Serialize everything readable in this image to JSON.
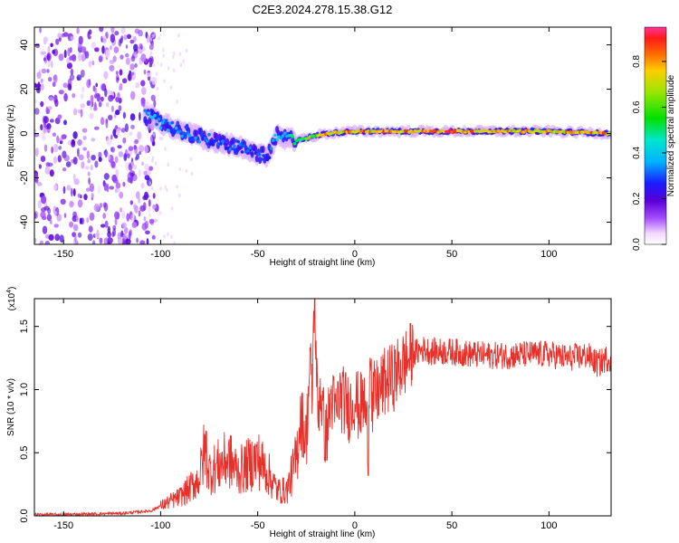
{
  "title": "C2E3.2024.278.15.38.G12",
  "chart_data": [
    {
      "type": "heatmap",
      "xlabel": "Height of straight line (km)",
      "ylabel": "Frequency (Hz)",
      "xlim": [
        -165,
        132
      ],
      "ylim": [
        -50,
        48
      ],
      "xticks": [
        -150,
        -100,
        -50,
        0,
        50,
        100
      ],
      "yticks": [
        -40,
        -20,
        0,
        20,
        40
      ],
      "colorbar": {
        "label": "Normalized spectral amplitude",
        "range": [
          0.0,
          0.95
        ],
        "ticks": [
          0.0,
          0.2,
          0.4,
          0.6,
          0.8
        ],
        "tick_labels": [
          "0.0",
          "0.2",
          "0.4",
          "0.6",
          "0.8"
        ]
      },
      "features": {
        "noise_region_x": [
          -165,
          -108
        ],
        "ridge": [
          {
            "x": -108,
            "y": 8,
            "amp": 0.45
          },
          {
            "x": -95,
            "y": 3,
            "amp": 0.4
          },
          {
            "x": -75,
            "y": -3,
            "amp": 0.35
          },
          {
            "x": -55,
            "y": -7,
            "amp": 0.35
          },
          {
            "x": -45,
            "y": -11,
            "amp": 0.3
          },
          {
            "x": -40,
            "y": -1,
            "amp": 0.45
          },
          {
            "x": -30,
            "y": -3,
            "amp": 0.55
          },
          {
            "x": -15,
            "y": 0,
            "amp": 0.85
          },
          {
            "x": 0,
            "y": 1,
            "amp": 0.9
          },
          {
            "x": 50,
            "y": 1,
            "amp": 0.95
          },
          {
            "x": 100,
            "y": 1,
            "amp": 0.85
          },
          {
            "x": 132,
            "y": 0,
            "amp": 0.9
          }
        ]
      }
    },
    {
      "type": "line",
      "xlabel": "Height of straight line (km)",
      "ylabel": "SNR (10 * v/v)",
      "y_multiplier_label": "(x10",
      "y_multiplier_exp": "4",
      "xlim": [
        -165,
        132
      ],
      "ylim": [
        0.0,
        1.72
      ],
      "xticks": [
        -150,
        -100,
        -50,
        0,
        50,
        100
      ],
      "yticks": [
        0.0,
        0.5,
        1.0,
        1.5
      ],
      "ytick_labels": [
        "0.0",
        "0.5",
        "1.0",
        "1.5"
      ],
      "series": [
        {
          "color": "#e8302a",
          "x": [
            -165,
            -150,
            -120,
            -105,
            -100,
            -90,
            -85,
            -80,
            -77,
            -75,
            -70,
            -65,
            -60,
            -55,
            -50,
            -45,
            -40,
            -35,
            -30,
            -28,
            -25,
            -23,
            -22,
            -21,
            -20,
            -19,
            -18,
            -15,
            -12,
            -10,
            -8,
            -5,
            -3,
            0,
            2,
            5,
            7,
            8,
            9,
            10,
            12,
            15,
            20,
            25,
            30,
            35,
            40,
            50,
            60,
            70,
            80,
            90,
            100,
            110,
            120,
            125,
            130,
            132
          ],
          "y": [
            0.01,
            0.01,
            0.02,
            0.04,
            0.08,
            0.15,
            0.22,
            0.3,
            0.55,
            0.35,
            0.4,
            0.45,
            0.35,
            0.4,
            0.45,
            0.35,
            0.2,
            0.2,
            0.45,
            0.8,
            0.6,
            1.25,
            0.9,
            1.7,
            1.4,
            0.7,
            1.05,
            0.6,
            0.95,
            0.8,
            0.95,
            0.9,
            0.85,
            0.95,
            0.85,
            0.9,
            0.55,
            1.55,
            0.75,
            0.95,
            0.98,
            1.05,
            1.1,
            1.2,
            1.28,
            1.32,
            1.3,
            1.3,
            1.28,
            1.27,
            1.27,
            1.28,
            1.28,
            1.25,
            1.27,
            1.2,
            1.25,
            1.25
          ]
        }
      ]
    }
  ]
}
